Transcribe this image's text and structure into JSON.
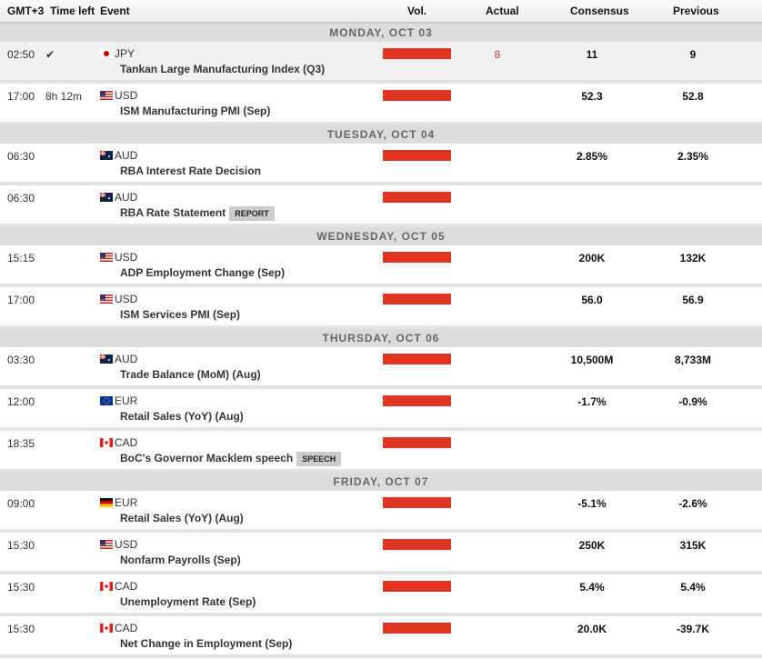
{
  "header": {
    "tz": "GMT+3",
    "time_left": "Time left",
    "event": "Event",
    "vol": "Vol.",
    "actual": "Actual",
    "consensus": "Consensus",
    "previous": "Previous"
  },
  "days": [
    {
      "label": "MONDAY, OCT 03",
      "events": [
        {
          "time": "02:50",
          "left": "✔",
          "cur": "JPY",
          "flag": "jp",
          "name": "Tankan Large Manufacturing Index (Q3)",
          "actual": "8",
          "consensus": "11",
          "previous": "9",
          "past": true
        },
        {
          "time": "17:00",
          "left": "8h 12m",
          "cur": "USD",
          "flag": "us",
          "name": "ISM Manufacturing PMI (Sep)",
          "actual": "",
          "consensus": "52.3",
          "previous": "52.8"
        }
      ]
    },
    {
      "label": "TUESDAY, OCT 04",
      "events": [
        {
          "time": "06:30",
          "left": "",
          "cur": "AUD",
          "flag": "au",
          "name": "RBA Interest Rate Decision",
          "actual": "",
          "consensus": "2.85%",
          "previous": "2.35%"
        },
        {
          "time": "06:30",
          "left": "",
          "cur": "AUD",
          "flag": "au",
          "name": "RBA Rate Statement",
          "tag": "REPORT",
          "actual": "",
          "consensus": "",
          "previous": ""
        }
      ]
    },
    {
      "label": "WEDNESDAY, OCT 05",
      "events": [
        {
          "time": "15:15",
          "left": "",
          "cur": "USD",
          "flag": "us",
          "name": "ADP Employment Change (Sep)",
          "actual": "",
          "consensus": "200K",
          "previous": "132K"
        },
        {
          "time": "17:00",
          "left": "",
          "cur": "USD",
          "flag": "us",
          "name": "ISM Services PMI (Sep)",
          "actual": "",
          "consensus": "56.0",
          "previous": "56.9"
        }
      ]
    },
    {
      "label": "THURSDAY, OCT 06",
      "events": [
        {
          "time": "03:30",
          "left": "",
          "cur": "AUD",
          "flag": "au",
          "name": "Trade Balance (MoM) (Aug)",
          "actual": "",
          "consensus": "10,500M",
          "previous": "8,733M"
        },
        {
          "time": "12:00",
          "left": "",
          "cur": "EUR",
          "flag": "eu",
          "name": "Retail Sales (YoY) (Aug)",
          "actual": "",
          "consensus": "-1.7%",
          "previous": "-0.9%"
        },
        {
          "time": "18:35",
          "left": "",
          "cur": "CAD",
          "flag": "ca",
          "name": "BoC's Governor Macklem speech",
          "tag": "SPEECH",
          "actual": "",
          "consensus": "",
          "previous": ""
        }
      ]
    },
    {
      "label": "FRIDAY, OCT 07",
      "events": [
        {
          "time": "09:00",
          "left": "",
          "cur": "EUR",
          "flag": "de",
          "name": "Retail Sales (YoY) (Aug)",
          "actual": "",
          "consensus": "-5.1%",
          "previous": "-2.6%"
        },
        {
          "time": "15:30",
          "left": "",
          "cur": "USD",
          "flag": "us",
          "name": "Nonfarm Payrolls (Sep)",
          "actual": "",
          "consensus": "250K",
          "previous": "315K"
        },
        {
          "time": "15:30",
          "left": "",
          "cur": "CAD",
          "flag": "ca",
          "name": "Unemployment Rate (Sep)",
          "actual": "",
          "consensus": "5.4%",
          "previous": "5.4%"
        },
        {
          "time": "15:30",
          "left": "",
          "cur": "CAD",
          "flag": "ca",
          "name": "Net Change in Employment (Sep)",
          "actual": "",
          "consensus": "20.0K",
          "previous": "-39.7K"
        }
      ]
    }
  ]
}
